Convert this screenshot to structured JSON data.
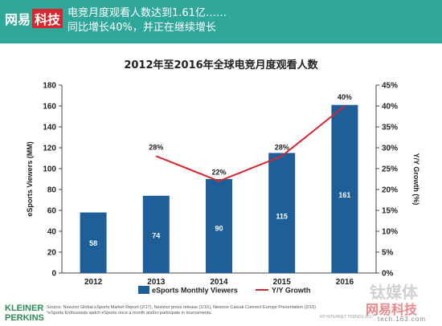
{
  "banner": {
    "logo_text": "网易",
    "logo_box": "科技",
    "line1": "电竞月度观看人数达到1.61亿……",
    "line2": "同比增长40%，并正在继续增长",
    "bg_color": "#2fa79a"
  },
  "footer": {
    "brand_line1": "KLEINER",
    "brand_line2": "PERKINS",
    "source_line1": "Source: Newzoo Global eSports Market Report (2/17), Newzoo press release (1/16), Newzoo Casual Connect Europe Presentation (2/15)",
    "source_line2": "*eSports Enthusiasts watch eSports once a month and/or participate in tournaments.",
    "kp_text": "KP INTERNET TRENDS 2017"
  },
  "watermark": {
    "line1": "钛媒体",
    "line2": "网易科技",
    "line3": "tech.163.com"
  },
  "chart_data": {
    "type": "bar",
    "title": "2012年至2016年全球电竞月度观看人数",
    "categories": [
      "2012",
      "2013",
      "2014",
      "2015",
      "2016"
    ],
    "ylabel": "eSports Viewers (MM)",
    "y2label": "Y/Y Growth (%)",
    "ylim": [
      0,
      180
    ],
    "yticks": [
      0,
      20,
      40,
      60,
      80,
      100,
      120,
      140,
      160,
      180
    ],
    "y2lim": [
      0,
      45
    ],
    "y2ticks": [
      "0%",
      "5%",
      "10%",
      "15%",
      "20%",
      "25%",
      "30%",
      "35%",
      "40%",
      "45%"
    ],
    "series": [
      {
        "name": "eSports Monthly Viewers",
        "type": "bar",
        "color": "#1f5f99",
        "values": [
          58,
          74,
          90,
          115,
          161
        ],
        "labels": [
          "58",
          "74",
          "90",
          "115",
          "161"
        ]
      },
      {
        "name": "Y/Y Growth",
        "type": "line",
        "color": "#d8262c",
        "axis": "y2",
        "values": [
          null,
          28,
          22,
          28,
          40
        ],
        "labels": [
          "",
          "28%",
          "22%",
          "28%",
          "40%"
        ]
      }
    ],
    "legend_position": "bottom",
    "grid": false
  }
}
